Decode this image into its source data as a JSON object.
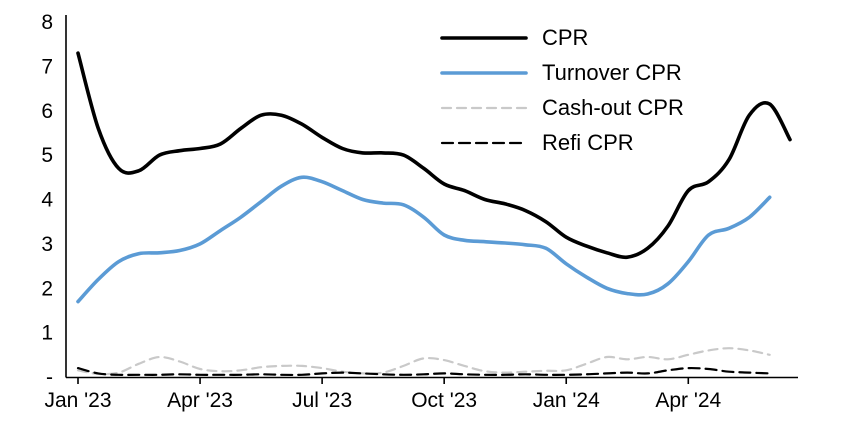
{
  "figure": {
    "background": "#ffffff",
    "axis_color": "#000000",
    "text_color": "#000000"
  },
  "chart_data": {
    "type": "line",
    "title": "",
    "xlabel": "",
    "ylabel": "",
    "ylim": [
      0,
      8
    ],
    "grid": false,
    "legend_position": "top-right",
    "n_points": 36,
    "x_tick_labels": [
      "Jan '23",
      "Apr '23",
      "Jul '23",
      "Oct '23",
      "Jan '24",
      "Apr '24"
    ],
    "x_tick_indices": [
      0,
      6,
      12,
      18,
      24,
      30
    ],
    "y_ticks": [
      {
        "label": "8",
        "value": 8
      },
      {
        "label": "7",
        "value": 7
      },
      {
        "label": "6",
        "value": 6
      },
      {
        "label": "5",
        "value": 5
      },
      {
        "label": "4",
        "value": 4
      },
      {
        "label": "3",
        "value": 3
      },
      {
        "label": "2",
        "value": 2
      },
      {
        "label": "1",
        "value": 1
      },
      {
        "label": "-",
        "value": 0
      }
    ],
    "series": [
      {
        "name": "CPR",
        "color": "#000000",
        "dash": null,
        "width": 3.6,
        "values": [
          7.3,
          5.6,
          4.7,
          4.65,
          5.0,
          5.1,
          5.15,
          5.25,
          5.6,
          5.9,
          5.9,
          5.7,
          5.4,
          5.15,
          5.05,
          5.05,
          5.0,
          4.7,
          4.35,
          4.2,
          4.0,
          3.9,
          3.75,
          3.5,
          3.15,
          2.95,
          2.8,
          2.7,
          2.9,
          3.4,
          4.2,
          4.4,
          4.9,
          5.9,
          6.15,
          5.35
        ]
      },
      {
        "name": "Turnover CPR",
        "color": "#5B9BD5",
        "dash": null,
        "width": 3.6,
        "values": [
          1.7,
          2.2,
          2.6,
          2.78,
          2.8,
          2.85,
          3.0,
          3.3,
          3.6,
          3.95,
          4.3,
          4.5,
          4.4,
          4.2,
          4.0,
          3.92,
          3.88,
          3.6,
          3.2,
          3.08,
          3.05,
          3.02,
          2.98,
          2.9,
          2.55,
          2.25,
          2.0,
          1.88,
          1.87,
          2.1,
          2.6,
          3.2,
          3.35,
          3.6,
          4.05
        ]
      },
      {
        "name": "Cash-out CPR",
        "color": "#C9C9C9",
        "dash": "9 6",
        "width": 2.2,
        "values": [
          0.15,
          0.07,
          0.1,
          0.3,
          0.45,
          0.35,
          0.18,
          0.13,
          0.15,
          0.22,
          0.25,
          0.25,
          0.2,
          0.12,
          0.08,
          0.1,
          0.25,
          0.42,
          0.38,
          0.25,
          0.13,
          0.1,
          0.12,
          0.14,
          0.15,
          0.3,
          0.45,
          0.4,
          0.45,
          0.4,
          0.5,
          0.6,
          0.65,
          0.6,
          0.5
        ]
      },
      {
        "name": "Refi CPR",
        "color": "#000000",
        "dash": "11 6",
        "width": 2.2,
        "values": [
          0.2,
          0.08,
          0.05,
          0.05,
          0.05,
          0.06,
          0.05,
          0.05,
          0.05,
          0.06,
          0.05,
          0.05,
          0.08,
          0.1,
          0.08,
          0.06,
          0.05,
          0.06,
          0.08,
          0.06,
          0.05,
          0.05,
          0.06,
          0.05,
          0.05,
          0.06,
          0.08,
          0.1,
          0.08,
          0.15,
          0.2,
          0.18,
          0.12,
          0.1,
          0.08
        ]
      }
    ]
  }
}
